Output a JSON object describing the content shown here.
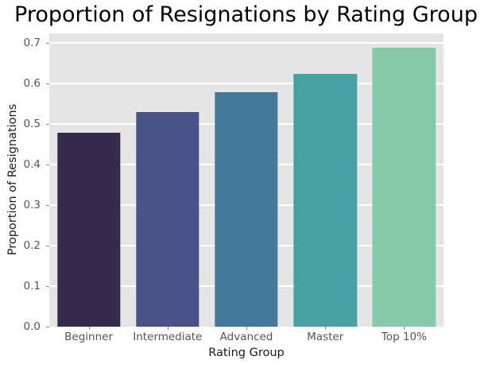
{
  "chart_data": {
    "type": "bar",
    "title": "Proportion of Resignations by Rating Group",
    "xlabel": "Rating Group",
    "ylabel": "Proportion of Resignations",
    "categories": [
      "Beginner",
      "Intermediate",
      "Advanced",
      "Master",
      "Top 10%"
    ],
    "values": [
      0.48,
      0.53,
      0.58,
      0.625,
      0.69
    ],
    "bar_colors": [
      "#36294b",
      "#495388",
      "#44799b",
      "#45a2a0",
      "#85cba9"
    ],
    "ylim": [
      0,
      0.7245
    ],
    "yticks": [
      0.0,
      0.1,
      0.2,
      0.3,
      0.4,
      0.5,
      0.6,
      0.7
    ],
    "ytick_labels": [
      "0.0",
      "0.1",
      "0.2",
      "0.3",
      "0.4",
      "0.5",
      "0.6",
      "0.7"
    ],
    "grid": true,
    "legend_position": "none",
    "styles": {
      "figure_facecolor": "#ffffff",
      "axes_facecolor": "#e5e5e5",
      "grid_color": "#ffffff",
      "tick_label_color": "#555555",
      "axis_label_color": "#1a1a1a",
      "title_color": "#000000",
      "tick_mark_color": "#8a8a8a"
    }
  }
}
